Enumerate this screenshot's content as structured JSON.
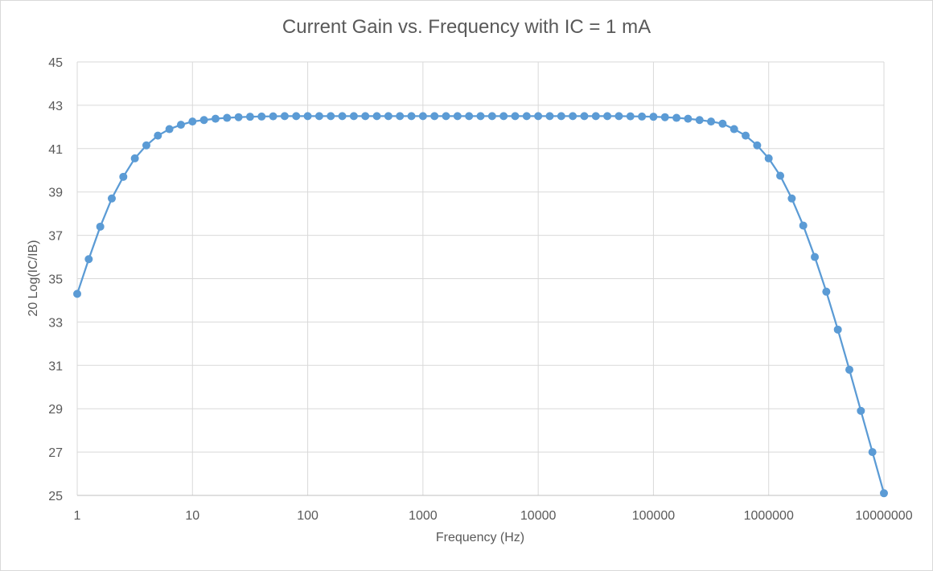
{
  "chart_data": {
    "type": "scatter",
    "title": "Current Gain vs. Frequency with IC = 1 mA",
    "xlabel": "Frequency (Hz)",
    "ylabel": "20 Log(IC/IB)",
    "x_scale": "log",
    "xlim": [
      1,
      10000000
    ],
    "ylim": [
      25,
      45
    ],
    "x_ticks": [
      "1",
      "10",
      "100",
      "1000",
      "10000",
      "100000",
      "1000000",
      "10000000"
    ],
    "y_ticks": [
      "25",
      "27",
      "29",
      "31",
      "33",
      "35",
      "37",
      "39",
      "41",
      "43",
      "45"
    ],
    "grid": true,
    "legend": "none",
    "series_color": "#5b9bd5",
    "series": [
      {
        "x": [
          1,
          1.259,
          1.585,
          1.995,
          2.512,
          3.162,
          3.981,
          5.012,
          6.31,
          7.943,
          10,
          12.59,
          15.85,
          19.95,
          25.12,
          31.62,
          39.81,
          50.12,
          63.1,
          79.43,
          100,
          125.9,
          158.5,
          199.5,
          251.2,
          316.2,
          398.1,
          501.2,
          631,
          794.3,
          1000,
          1259,
          1585,
          1995,
          2512,
          3162,
          3981,
          5012,
          6310,
          7943,
          10000,
          12590,
          15850,
          19950,
          25120,
          31620,
          39810,
          50120,
          63100,
          79430,
          100000,
          125900,
          158500,
          199500,
          251200,
          316200,
          398100,
          501200,
          631000,
          794300,
          1000000,
          1259000,
          1585000,
          1995000,
          2512000,
          3162000,
          3981000,
          5012000,
          6310000,
          7943000,
          10000000
        ],
        "y": [
          34.3,
          35.9,
          37.4,
          38.7,
          39.7,
          40.55,
          41.15,
          41.6,
          41.9,
          42.1,
          42.25,
          42.32,
          42.38,
          42.42,
          42.45,
          42.47,
          42.48,
          42.49,
          42.5,
          42.5,
          42.5,
          42.5,
          42.5,
          42.5,
          42.5,
          42.5,
          42.5,
          42.5,
          42.5,
          42.5,
          42.5,
          42.5,
          42.5,
          42.5,
          42.5,
          42.5,
          42.5,
          42.5,
          42.5,
          42.5,
          42.5,
          42.5,
          42.5,
          42.5,
          42.5,
          42.5,
          42.5,
          42.5,
          42.49,
          42.48,
          42.47,
          42.45,
          42.42,
          42.38,
          42.32,
          42.25,
          42.15,
          41.9,
          41.6,
          41.15,
          40.55,
          39.75,
          38.7,
          37.45,
          36,
          34.4,
          32.65,
          30.8,
          28.9,
          27,
          25.1
        ]
      }
    ]
  }
}
